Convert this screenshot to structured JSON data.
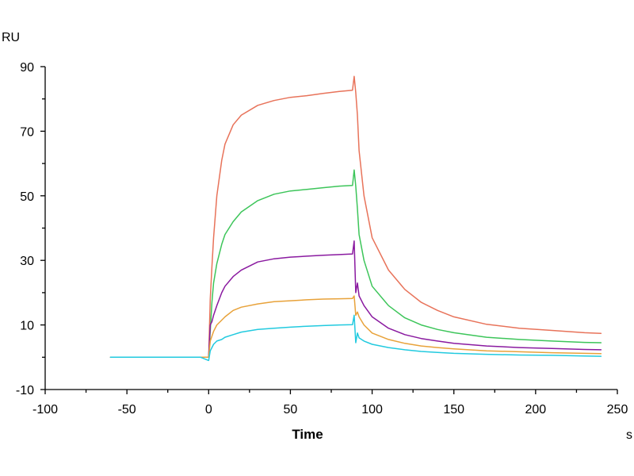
{
  "chart_data": {
    "type": "line",
    "title": "",
    "xlabel": "Time",
    "x_unit": "s",
    "ylabel": "RU",
    "xlim": [
      -100,
      250
    ],
    "ylim": [
      -10,
      90
    ],
    "x_ticks": [
      -100,
      -50,
      0,
      50,
      100,
      150,
      200,
      250
    ],
    "y_ticks": [
      -10,
      10,
      30,
      50,
      70,
      90
    ],
    "grid": false,
    "legend": "none",
    "series": [
      {
        "color": "#e8735a",
        "x": [
          -60,
          -30,
          -5,
          0,
          1,
          2,
          3,
          5,
          8,
          10,
          15,
          20,
          30,
          40,
          50,
          60,
          70,
          80,
          88,
          89,
          90,
          91,
          92,
          95,
          100,
          110,
          120,
          130,
          140,
          150,
          170,
          190,
          210,
          230,
          240
        ],
        "y": [
          0,
          0,
          0,
          0,
          18,
          28,
          37,
          50,
          61,
          66,
          72,
          75,
          78,
          79.5,
          80.5,
          81,
          81.7,
          82.3,
          82.7,
          87,
          82,
          75,
          64,
          50,
          37,
          27,
          21,
          17,
          14.5,
          12.5,
          10.2,
          9,
          8.3,
          7.6,
          7.4
        ]
      },
      {
        "color": "#3dc55a",
        "x": [
          -60,
          -30,
          -5,
          0,
          1,
          2,
          3,
          5,
          8,
          10,
          15,
          20,
          30,
          40,
          50,
          60,
          70,
          80,
          88,
          89,
          90,
          91,
          92,
          95,
          100,
          110,
          120,
          130,
          140,
          150,
          170,
          190,
          210,
          230,
          240
        ],
        "y": [
          0,
          0,
          0,
          0,
          8,
          17,
          23,
          29,
          35,
          38,
          42,
          45,
          48.5,
          50.5,
          51.5,
          52,
          52.5,
          53,
          53.2,
          58,
          53,
          46,
          38,
          30,
          22,
          16,
          12.2,
          10,
          8.6,
          7.6,
          6.2,
          5.5,
          5,
          4.6,
          4.5
        ]
      },
      {
        "color": "#8a1aa0",
        "x": [
          -60,
          -30,
          -5,
          0,
          1,
          2,
          3,
          5,
          8,
          10,
          15,
          20,
          30,
          40,
          50,
          60,
          70,
          80,
          88,
          89,
          90,
          91,
          92,
          95,
          100,
          110,
          120,
          130,
          140,
          150,
          170,
          190,
          210,
          230,
          240
        ],
        "y": [
          0,
          0,
          0,
          0,
          10,
          11,
          13,
          16,
          20,
          22,
          25,
          27,
          29.5,
          30.5,
          31,
          31.3,
          31.6,
          31.8,
          32,
          36,
          20,
          23,
          19,
          16,
          12.5,
          9,
          7,
          5.8,
          5,
          4.3,
          3.5,
          3,
          2.7,
          2.4,
          2.3
        ]
      },
      {
        "color": "#e8a23a",
        "x": [
          -60,
          -30,
          -5,
          0,
          1,
          2,
          3,
          5,
          8,
          10,
          15,
          20,
          30,
          40,
          50,
          60,
          70,
          80,
          88,
          89,
          90,
          91,
          92,
          95,
          100,
          110,
          120,
          130,
          140,
          150,
          170,
          190,
          210,
          230,
          240
        ],
        "y": [
          0,
          0,
          0,
          0,
          5,
          6.5,
          8,
          10,
          11.5,
          12.5,
          14.5,
          15.5,
          16.5,
          17.2,
          17.5,
          17.8,
          18,
          18.1,
          18.2,
          19,
          13,
          14,
          12.5,
          10,
          7.5,
          5.5,
          4.3,
          3.5,
          3,
          2.6,
          2,
          1.7,
          1.4,
          1.2,
          1.1
        ]
      },
      {
        "color": "#22cadf",
        "x": [
          -60,
          -30,
          -5,
          0,
          1,
          2,
          3,
          5,
          8,
          10,
          15,
          20,
          30,
          40,
          50,
          60,
          70,
          80,
          88,
          89,
          90,
          91,
          92,
          95,
          100,
          110,
          120,
          130,
          140,
          150,
          170,
          190,
          210,
          230,
          240
        ],
        "y": [
          0,
          0,
          0,
          -1,
          2,
          3,
          4,
          5,
          5.5,
          6.2,
          7,
          7.8,
          8.6,
          9,
          9.3,
          9.6,
          9.8,
          10,
          10.1,
          13,
          4.5,
          7.5,
          6,
          5,
          4,
          3,
          2.3,
          1.8,
          1.5,
          1.2,
          0.9,
          0.7,
          0.6,
          0.4,
          0.3
        ]
      }
    ]
  }
}
